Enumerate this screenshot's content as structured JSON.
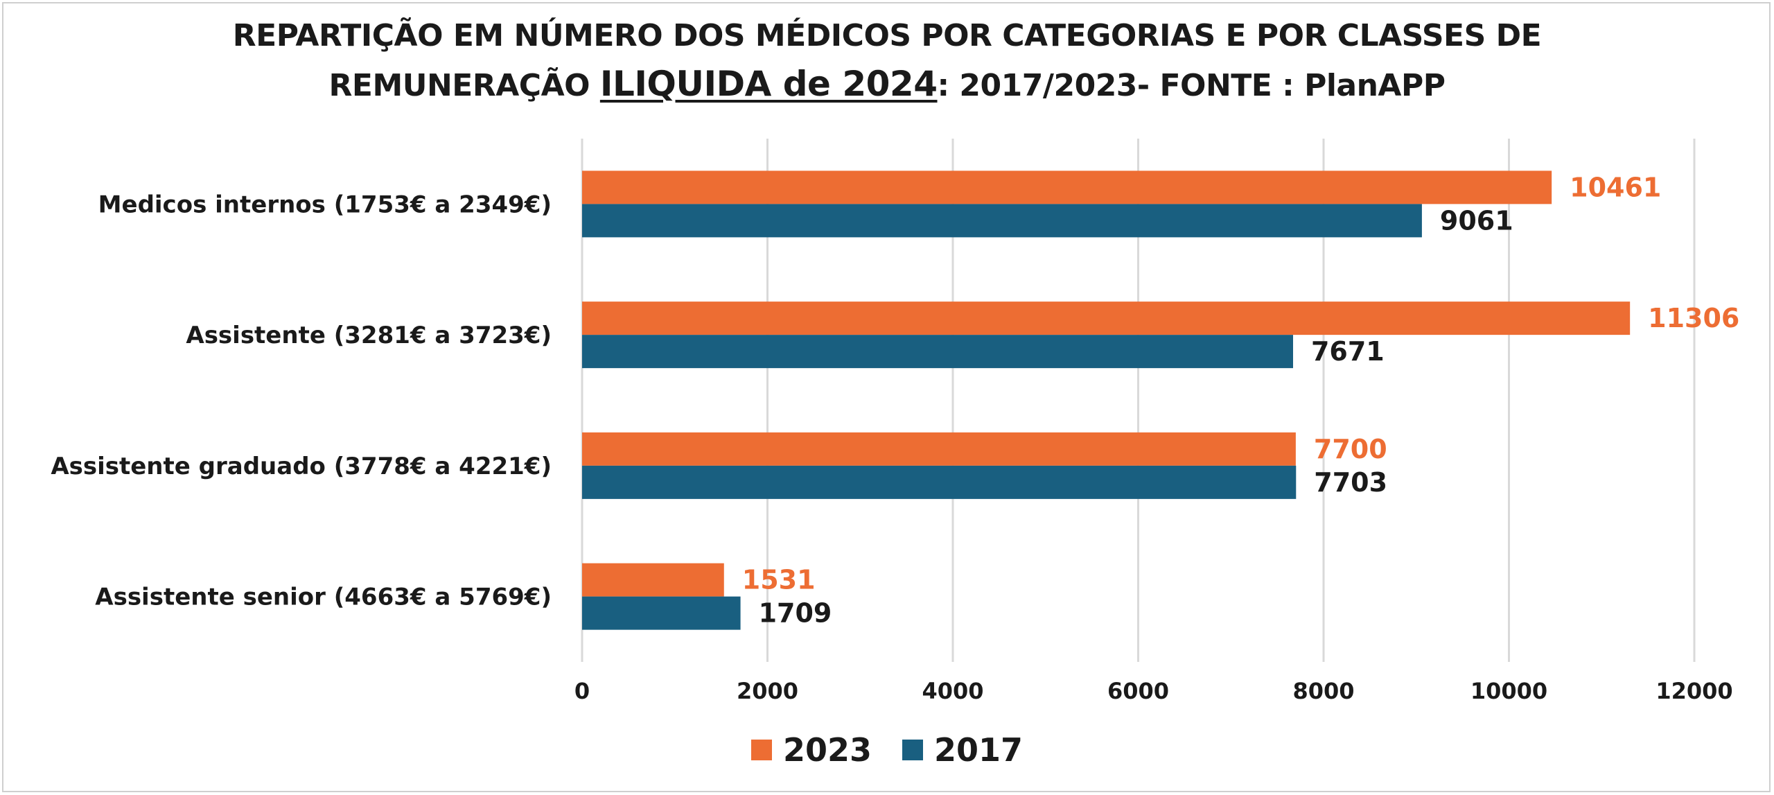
{
  "title": {
    "line1": "REPARTIÇÃO EM NÚMERO DOS MÉDICOS POR CATEGORIAS E POR CLASSES DE",
    "line2_prefix": "REMUNERAÇÃO ",
    "line2_emphasis": "ILIQUIDA de 2024",
    "line2_suffix": ": 2017/2023- FONTE : PlanAPP"
  },
  "colors": {
    "series_2023": "#ED6D33",
    "series_2017": "#195F80",
    "label_2023": "#ED6D33",
    "label_2017": "#1a1a1a",
    "grid": "#d9d9d9"
  },
  "chart_data": {
    "type": "bar",
    "orientation": "horizontal",
    "categories": [
      "Medicos internos (1753€ a 2349€)",
      "Assistente (3281€ a 3723€)",
      "Assistente graduado (3778€ a 4221€)",
      "Assistente senior (4663€ a 5769€)"
    ],
    "series": [
      {
        "name": "2023",
        "values": [
          10461,
          11306,
          7700,
          1531
        ]
      },
      {
        "name": "2017",
        "values": [
          9061,
          7671,
          7703,
          1709
        ]
      }
    ],
    "xlim": [
      0,
      12000
    ],
    "xticks": [
      0,
      2000,
      4000,
      6000,
      8000,
      10000,
      12000
    ],
    "grid": true,
    "data_labels": true,
    "legend_position": "bottom"
  },
  "legend": {
    "items": [
      {
        "label": "2023"
      },
      {
        "label": "2017"
      }
    ]
  }
}
